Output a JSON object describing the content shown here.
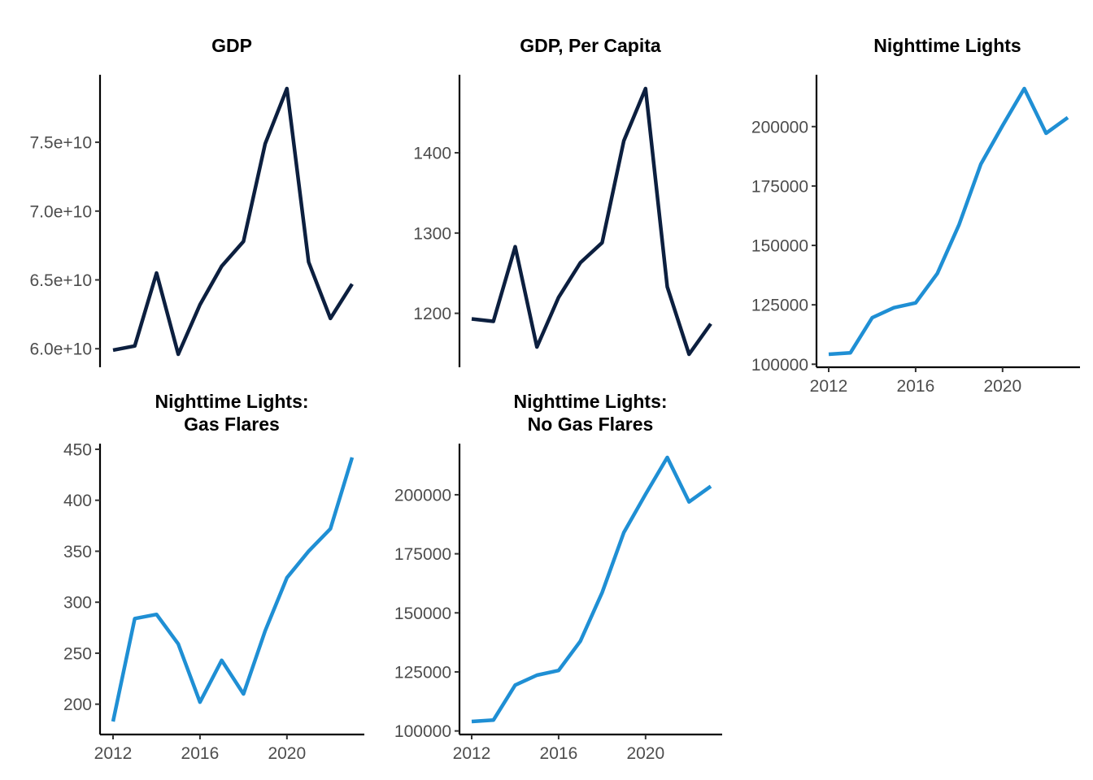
{
  "figure": {
    "background": "#ffffff"
  },
  "chart_data": [
    {
      "type": "line",
      "title": "GDP",
      "color": "#0c1f3f",
      "x": [
        2012,
        2013,
        2014,
        2015,
        2016,
        2017,
        2018,
        2019,
        2020,
        2021,
        2022,
        2023
      ],
      "values": [
        59900000000.0,
        60200000000.0,
        65500000000.0,
        59600000000.0,
        63200000000.0,
        66000000000.0,
        67800000000.0,
        74900000000.0,
        78900000000.0,
        66300000000.0,
        62200000000.0,
        64700000000.0
      ],
      "xlim": [
        2012,
        2023
      ],
      "ylim": [
        59600000000.0,
        78900000000.0
      ],
      "yticks": [
        60000000000.0,
        65000000000.0,
        70000000000.0,
        75000000000.0
      ],
      "ytick_labels": [
        "6.0e+10",
        "6.5e+10",
        "7.0e+10",
        "7.5e+10"
      ],
      "xticks": [],
      "xtick_labels": [],
      "show_x_axis": false
    },
    {
      "type": "line",
      "title": "GDP, Per Capita",
      "color": "#0c1f3f",
      "x": [
        2012,
        2013,
        2014,
        2015,
        2016,
        2017,
        2018,
        2019,
        2020,
        2021,
        2022,
        2023
      ],
      "values": [
        1193,
        1190,
        1283,
        1158,
        1220,
        1263,
        1288,
        1415,
        1480,
        1233,
        1149,
        1187
      ],
      "xlim": [
        2012,
        2023
      ],
      "ylim": [
        1149,
        1480
      ],
      "yticks": [
        1200,
        1300,
        1400
      ],
      "ytick_labels": [
        "1200",
        "1300",
        "1400"
      ],
      "xticks": [],
      "xtick_labels": [],
      "show_x_axis": false
    },
    {
      "type": "line",
      "title": "Nighttime Lights",
      "color": "#1f8fd4",
      "x": [
        2012,
        2013,
        2014,
        2015,
        2016,
        2017,
        2018,
        2019,
        2020,
        2021,
        2022,
        2023
      ],
      "values": [
        104200,
        104800,
        119600,
        123800,
        125800,
        138200,
        158800,
        184200,
        200400,
        216000,
        197200,
        203800
      ],
      "xlim": [
        2012,
        2023
      ],
      "ylim": [
        104200,
        216000
      ],
      "yticks": [
        100000,
        125000,
        150000,
        175000,
        200000
      ],
      "ytick_labels": [
        "100000",
        "125000",
        "150000",
        "175000",
        "200000"
      ],
      "xticks": [
        2012,
        2016,
        2020
      ],
      "xtick_labels": [
        "2012",
        "2016",
        "2020"
      ],
      "show_x_axis": true
    },
    {
      "type": "line",
      "title": "Nighttime Lights:\nGas Flares",
      "color": "#1f8fd4",
      "x": [
        2012,
        2013,
        2014,
        2015,
        2016,
        2017,
        2018,
        2019,
        2020,
        2021,
        2022,
        2023
      ],
      "values": [
        183,
        284,
        288,
        259,
        202,
        243,
        210,
        272,
        324,
        350,
        372,
        442
      ],
      "xlim": [
        2012,
        2023
      ],
      "ylim": [
        183,
        442
      ],
      "yticks": [
        200,
        250,
        300,
        350,
        400,
        450
      ],
      "ytick_labels": [
        "200",
        "250",
        "300",
        "350",
        "400",
        "450"
      ],
      "xticks": [
        2012,
        2016,
        2020
      ],
      "xtick_labels": [
        "2012",
        "2016",
        "2020"
      ],
      "show_x_axis": true
    },
    {
      "type": "line",
      "title": "Nighttime Lights:\nNo Gas Flares",
      "color": "#1f8fd4",
      "x": [
        2012,
        2013,
        2014,
        2015,
        2016,
        2017,
        2018,
        2019,
        2020,
        2021,
        2022,
        2023
      ],
      "values": [
        104000,
        104600,
        119400,
        123600,
        125600,
        138000,
        158600,
        184000,
        200200,
        215800,
        197000,
        203600
      ],
      "xlim": [
        2012,
        2023
      ],
      "ylim": [
        104000,
        215800
      ],
      "yticks": [
        100000,
        125000,
        150000,
        175000,
        200000
      ],
      "ytick_labels": [
        "100000",
        "125000",
        "150000",
        "175000",
        "200000"
      ],
      "xticks": [
        2012,
        2016,
        2020
      ],
      "xtick_labels": [
        "2012",
        "2016",
        "2020"
      ],
      "show_x_axis": true
    }
  ]
}
